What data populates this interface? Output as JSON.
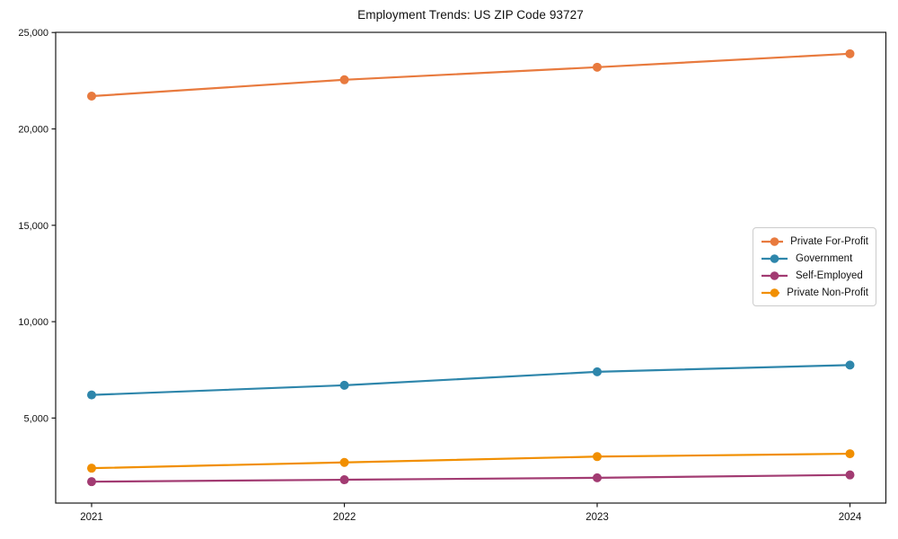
{
  "chart_data": {
    "type": "line",
    "title": "Employment Trends: US ZIP Code 93727",
    "x": [
      2021,
      2022,
      2023,
      2024
    ],
    "xtick_labels": [
      "2021",
      "2022",
      "2023",
      "2024"
    ],
    "yticks": [
      5000,
      10000,
      15000,
      20000,
      25000
    ],
    "ytick_labels": [
      "5,000",
      "10,000",
      "15,000",
      "20,000",
      "25,000"
    ],
    "ylim": [
      590,
      25010
    ],
    "xlabel": "",
    "ylabel": "",
    "grid": false,
    "legend_position": "center right",
    "series": [
      {
        "name": "Private For-Profit",
        "color": "#E87A3E",
        "values": [
          21700,
          22550,
          23200,
          23900
        ]
      },
      {
        "name": "Government",
        "color": "#2E86AB",
        "values": [
          6200,
          6700,
          7400,
          7750
        ]
      },
      {
        "name": "Self-Employed",
        "color": "#A23B72",
        "values": [
          1700,
          1800,
          1900,
          2050
        ]
      },
      {
        "name": "Private Non-Profit",
        "color": "#F18F01",
        "values": [
          2400,
          2700,
          3000,
          3150
        ]
      }
    ],
    "axis_color": "#1a1a1a",
    "legend_border_color": "#cccccc"
  }
}
